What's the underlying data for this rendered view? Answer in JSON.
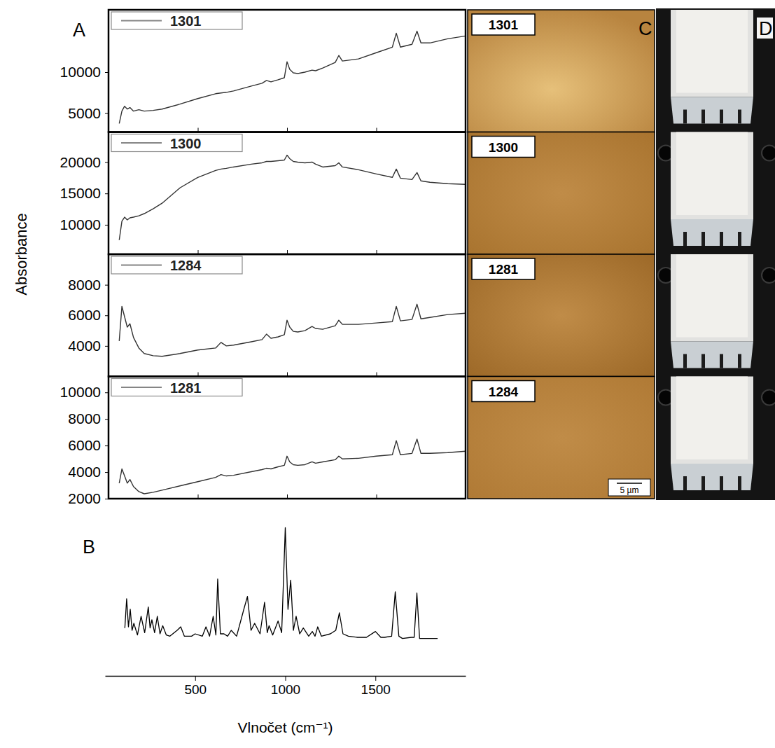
{
  "figure": {
    "panel_labels": [
      "A",
      "B",
      "C",
      "D"
    ],
    "ylabel": "Absorbance"
  },
  "chart_data": [
    {
      "type": "line",
      "x": [
        60,
        75,
        90,
        105,
        120,
        140,
        170,
        200,
        250,
        300,
        400,
        500,
        600,
        630,
        660,
        700,
        800,
        860,
        885,
        910,
        950,
        985,
        1000,
        1015,
        1035,
        1060,
        1100,
        1140,
        1160,
        1200,
        1270,
        1290,
        1310,
        1400,
        1500,
        1590,
        1612,
        1635,
        1700,
        1728,
        1750,
        1800,
        1900,
        2000
      ],
      "xlim": [
        0,
        2000
      ],
      "xticks": [
        500,
        1000,
        1500
      ],
      "ylim": [
        2700,
        17600
      ],
      "yticks": [
        5000,
        10000
      ],
      "tick_labels": "y",
      "legend": "top-left",
      "series": [
        {
          "name": "1301",
          "color": "#333333",
          "values": [
            3730,
            5250,
            5850,
            5500,
            5680,
            5250,
            5420,
            5250,
            5340,
            5500,
            6100,
            6780,
            7370,
            7460,
            7540,
            7710,
            8300,
            8640,
            8980,
            8810,
            9070,
            9320,
            11270,
            10340,
            9920,
            9830,
            10000,
            10250,
            10170,
            10510,
            11190,
            12030,
            11360,
            11610,
            12370,
            13050,
            14750,
            13050,
            13390,
            15000,
            13560,
            13560,
            14070,
            14410
          ]
        }
      ]
    },
    {
      "type": "line",
      "x": [
        60,
        75,
        90,
        105,
        120,
        140,
        170,
        200,
        250,
        300,
        400,
        500,
        600,
        630,
        660,
        700,
        800,
        860,
        885,
        910,
        950,
        985,
        1000,
        1015,
        1035,
        1060,
        1100,
        1140,
        1160,
        1200,
        1270,
        1290,
        1310,
        1400,
        1500,
        1590,
        1612,
        1635,
        1700,
        1728,
        1750,
        1800,
        1900,
        2000
      ],
      "xlim": [
        0,
        2000
      ],
      "xticks": [
        500,
        1000,
        1500
      ],
      "ylim": [
        5300,
        24800
      ],
      "yticks": [
        10000,
        15000,
        20000
      ],
      "tick_labels": "y",
      "legend": "top-left",
      "series": [
        {
          "name": "1300",
          "color": "#333333",
          "values": [
            7560,
            10560,
            11220,
            10780,
            11110,
            11220,
            11440,
            11780,
            12560,
            13440,
            15890,
            17560,
            18670,
            18890,
            19000,
            19220,
            19670,
            19890,
            20110,
            20110,
            20220,
            20330,
            21110,
            20560,
            20110,
            20000,
            19890,
            20000,
            19670,
            19220,
            19440,
            19890,
            19220,
            18780,
            18110,
            17560,
            18890,
            17440,
            17220,
            18330,
            17000,
            16780,
            16560,
            16440
          ]
        }
      ]
    },
    {
      "type": "line",
      "x": [
        60,
        75,
        90,
        105,
        120,
        140,
        170,
        200,
        250,
        300,
        400,
        500,
        600,
        630,
        660,
        700,
        800,
        860,
        885,
        910,
        950,
        985,
        1000,
        1015,
        1035,
        1060,
        1100,
        1140,
        1160,
        1200,
        1270,
        1290,
        1310,
        1400,
        1500,
        1590,
        1612,
        1635,
        1700,
        1728,
        1750,
        1800,
        1900,
        2000
      ],
      "xlim": [
        0,
        2000
      ],
      "xticks": [
        500,
        1000,
        1500
      ],
      "ylim": [
        2000,
        10000
      ],
      "yticks": [
        4000,
        6000,
        8000
      ],
      "tick_labels": "y",
      "legend": "top-left",
      "series": [
        {
          "name": "1284",
          "color": "#333333",
          "values": [
            4320,
            6590,
            5910,
            5230,
            5450,
            4550,
            3860,
            3500,
            3360,
            3320,
            3500,
            3730,
            3860,
            4230,
            4000,
            4050,
            4270,
            4410,
            4770,
            4500,
            4590,
            4730,
            5680,
            5230,
            4950,
            4910,
            5000,
            5270,
            5140,
            5090,
            5320,
            5680,
            5410,
            5410,
            5500,
            5590,
            6590,
            5640,
            5730,
            6730,
            5770,
            5860,
            6050,
            6140
          ]
        }
      ]
    },
    {
      "type": "line",
      "x": [
        60,
        75,
        90,
        105,
        120,
        140,
        170,
        200,
        250,
        300,
        400,
        500,
        600,
        630,
        660,
        700,
        800,
        860,
        885,
        910,
        950,
        985,
        1000,
        1015,
        1035,
        1060,
        1100,
        1140,
        1160,
        1200,
        1270,
        1290,
        1310,
        1400,
        1500,
        1590,
        1612,
        1635,
        1700,
        1728,
        1750,
        1800,
        1900,
        2000
      ],
      "xlim": [
        0,
        2000
      ],
      "xticks": [
        500,
        1000,
        1500
      ],
      "ylim": [
        2000,
        11200
      ],
      "yticks": [
        2000,
        4000,
        6000,
        8000,
        10000
      ],
      "tick_labels": "y",
      "legend": "top-left",
      "series": [
        {
          "name": "1281",
          "color": "#333333",
          "values": [
            3170,
            4240,
            3710,
            3170,
            3440,
            2910,
            2530,
            2370,
            2480,
            2640,
            2960,
            3280,
            3600,
            3810,
            3710,
            3760,
            4030,
            4190,
            4290,
            4240,
            4400,
            4510,
            5200,
            4770,
            4560,
            4510,
            4560,
            4770,
            4670,
            4770,
            4930,
            5200,
            4990,
            5040,
            5200,
            5310,
            6370,
            5310,
            5410,
            6480,
            5410,
            5410,
            5470,
            5570
          ]
        }
      ]
    },
    {
      "type": "line",
      "xlabel": "Vlnočet (cm⁻¹)",
      "x": [
        110,
        120,
        130,
        140,
        150,
        160,
        180,
        200,
        220,
        240,
        250,
        260,
        275,
        290,
        305,
        320,
        340,
        360,
        400,
        420,
        440,
        480,
        500,
        540,
        560,
        580,
        600,
        615,
        625,
        640,
        660,
        680,
        700,
        730,
        770,
        790,
        810,
        830,
        860,
        885,
        900,
        910,
        930,
        960,
        980,
        1000,
        1015,
        1030,
        1045,
        1060,
        1080,
        1100,
        1130,
        1150,
        1165,
        1180,
        1200,
        1250,
        1280,
        1300,
        1320,
        1350,
        1400,
        1450,
        1500,
        1530,
        1550,
        1590,
        1610,
        1630,
        1650,
        1700,
        1715,
        1730,
        1745,
        1770,
        1845
      ],
      "xlim": [
        0,
        2000
      ],
      "xticks": [
        500,
        1000,
        1500
      ],
      "ylim": [
        0,
        105
      ],
      "tick_labels": "x",
      "series": [
        {
          "color": "#000000",
          "values": [
            14,
            39,
            15,
            30,
            12,
            18,
            8,
            24,
            10,
            32,
            14,
            21,
            10,
            24,
            9,
            16,
            8,
            7,
            12,
            15,
            7,
            7,
            9,
            7,
            15,
            7,
            24,
            8,
            56,
            9,
            9,
            7,
            12,
            7,
            30,
            41,
            12,
            18,
            9,
            36,
            10,
            16,
            8,
            20,
            10,
            100,
            30,
            55,
            12,
            24,
            9,
            14,
            7,
            11,
            7,
            15,
            7,
            9,
            12,
            27,
            9,
            7,
            6,
            6,
            11,
            6,
            6,
            7,
            45,
            7,
            5,
            6,
            6,
            44,
            5,
            5,
            5
          ]
        }
      ]
    }
  ],
  "images": {
    "C": {
      "labels": [
        "1301",
        "1300",
        "1281",
        "1284"
      ],
      "scale_bar": "5 µm"
    }
  }
}
